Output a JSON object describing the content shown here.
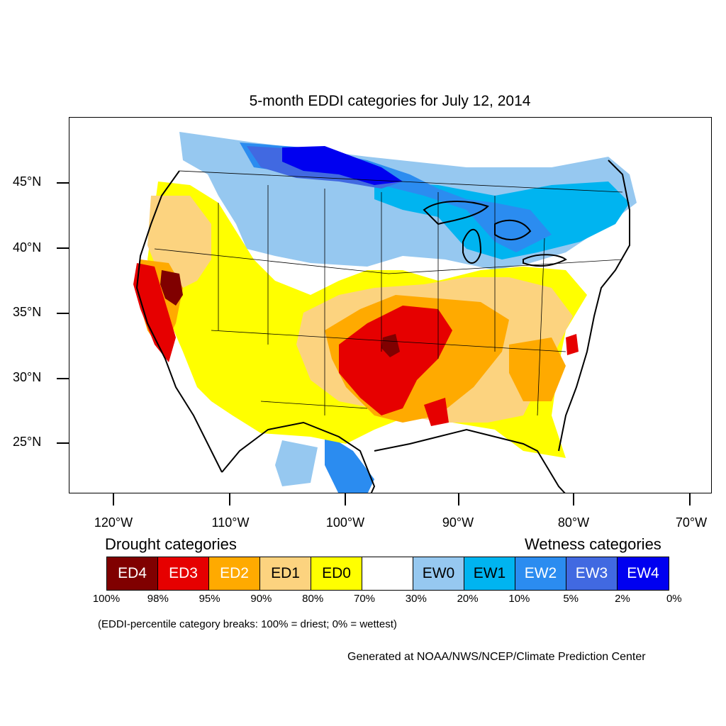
{
  "title": "5-month EDDI categories for July 12, 2014",
  "latitude_labels": [
    "45°N",
    "40°N",
    "35°N",
    "30°N",
    "25°N"
  ],
  "longitude_labels": [
    "120°W",
    "110°W",
    "100°W",
    "90°W",
    "80°W",
    "70°W"
  ],
  "legend": {
    "drought_heading": "Drought categories",
    "wetness_heading": "Wetness categories",
    "categories": [
      {
        "label": "ED4",
        "color": "#800000",
        "text_color": "#ffffff"
      },
      {
        "label": "ED3",
        "color": "#e60000",
        "text_color": "#ffffff"
      },
      {
        "label": "ED2",
        "color": "#ffaa00",
        "text_color": "#ffffff"
      },
      {
        "label": "ED1",
        "color": "#fcd37f",
        "text_color": "#000000"
      },
      {
        "label": "ED0",
        "color": "#ffff00",
        "text_color": "#000000"
      },
      {
        "label": "",
        "color": "#ffffff",
        "text_color": "#000000"
      },
      {
        "label": "EW0",
        "color": "#96c8f0",
        "text_color": "#000000"
      },
      {
        "label": "EW1",
        "color": "#00b4f0",
        "text_color": "#000000"
      },
      {
        "label": "EW2",
        "color": "#2b8cf0",
        "text_color": "#ffffff"
      },
      {
        "label": "EW3",
        "color": "#4169e1",
        "text_color": "#ffffff"
      },
      {
        "label": "EW4",
        "color": "#0000f0",
        "text_color": "#ffffff"
      }
    ],
    "breaks": [
      "100%",
      "98%",
      "95%",
      "90%",
      "80%",
      "70%",
      "30%",
      "20%",
      "10%",
      "5%",
      "2%",
      "0%"
    ]
  },
  "note": "(EDDI-percentile category breaks: 100% = driest; 0% = wettest)",
  "credit": "Generated at NOAA/NWS/NCEP/Climate Prediction Center"
}
